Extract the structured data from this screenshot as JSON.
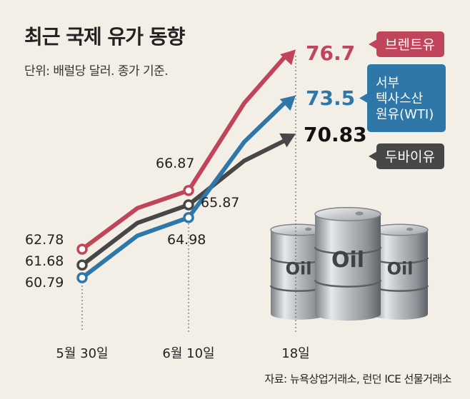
{
  "title": "최근 국제 유가 동향",
  "subtitle": "단위: 배럴당 달러. 종가 기준.",
  "source": "자료: 뉴욕상업거래소, 런던 ICE 선물거래소",
  "colors": {
    "brent": "#c0455a",
    "wti": "#2e77a8",
    "dubai": "#474747"
  },
  "chart_data": {
    "type": "line",
    "title": "최근 국제 유가 동향",
    "unit": "단위: 배럴당 달러. 종가 기준.",
    "categories": [
      "5월 30일",
      "6월 10일",
      "18일"
    ],
    "grid": false,
    "series": [
      {
        "name": "브렌트유",
        "values": [
          62.78,
          66.87,
          76.7
        ],
        "labels": [
          "62.78",
          "66.87",
          "76.7"
        ]
      },
      {
        "name": "서부 텍사스산 원유(WTI)",
        "name_lines": [
          "서부",
          "텍사스산",
          "원유(WTI)"
        ],
        "values": [
          60.79,
          64.98,
          73.5
        ],
        "labels": [
          "60.79",
          "64.98",
          "73.5"
        ]
      },
      {
        "name": "두바이유",
        "values": [
          61.68,
          65.87,
          70.83
        ],
        "labels": [
          "61.68",
          "65.87",
          "70.83"
        ]
      }
    ]
  },
  "barrels": {
    "label": "Oil"
  }
}
